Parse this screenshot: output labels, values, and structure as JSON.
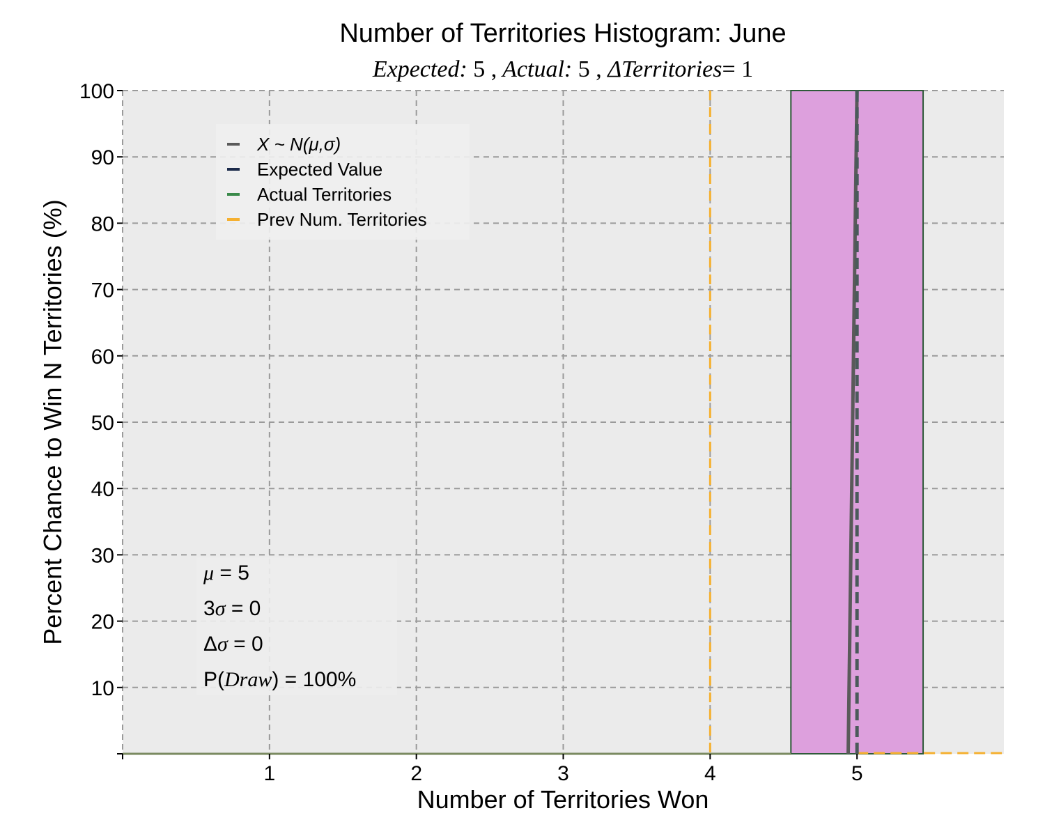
{
  "chart_data": {
    "type": "bar",
    "title": "Number of Territories Histogram: June",
    "subtitle": {
      "expected_label": "Expected:",
      "expected_value": "5",
      "actual_label": "Actual:",
      "actual_value": "5",
      "delta_label": "ΔTerritories",
      "delta_value": "= 1"
    },
    "xlabel": "Number of Territories Won",
    "ylabel": "Percent Chance to Win N Territories (%)",
    "xlim": [
      0,
      6
    ],
    "ylim": [
      0,
      100
    ],
    "xticks": [
      1,
      2,
      3,
      4,
      5
    ],
    "yticks": [
      10,
      20,
      30,
      40,
      50,
      60,
      70,
      80,
      90,
      100
    ],
    "grid": true,
    "bars": [
      {
        "x": 5,
        "value": 100,
        "x_start": 4.55,
        "x_end": 5.45
      }
    ],
    "normal_curve": {
      "name": "X ~ N(μ,σ)",
      "points": [
        [
          4.94,
          0
        ],
        [
          5.0,
          100
        ]
      ]
    },
    "expected_value": 5,
    "actual_territories": 5,
    "prev_num_territories": 4,
    "legend": {
      "placement": "upper-left",
      "entries": [
        {
          "label": "X ~ N(μ,σ)",
          "color": "#5a5a5a",
          "italic": true
        },
        {
          "label": "Expected Value",
          "color": "#1b2a4a"
        },
        {
          "label": "Actual Territories",
          "color": "#3a8a4a"
        },
        {
          "label": "Prev Num. Territories",
          "color": "#f5b030"
        }
      ]
    },
    "stats": [
      {
        "sym": "μ",
        "prefix": "",
        "text": " = 5"
      },
      {
        "sym": "σ",
        "prefix": "3",
        "text": " = 0"
      },
      {
        "sym": "σ",
        "prefix": "Δ",
        "text": " = 0"
      },
      {
        "sym": "Draw",
        "prefix": "P(",
        "text": ") = 100%"
      }
    ],
    "colors": {
      "background": "#ebebeb",
      "bar_fill": "#dda0dd",
      "bar_edge": "#2f5a3a",
      "curve": "#5a5a5a",
      "expected": "#1b2a4a",
      "actual": "#3a8a4a",
      "prev": "#f5b030",
      "grid": "#9a9a9a"
    }
  }
}
